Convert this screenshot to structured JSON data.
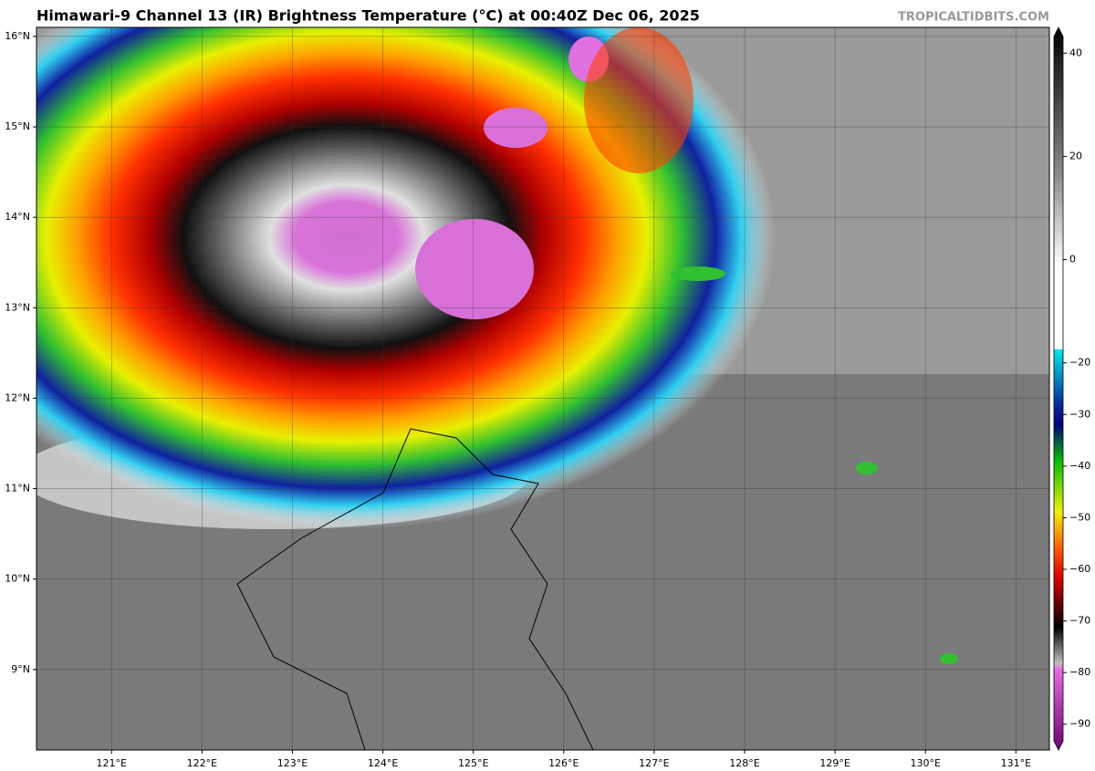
{
  "map": {
    "title": "Himawari-9 Channel 13 (IR) Brightness Temperature (°C) at 00:40Z Dec 06, 2025",
    "credit": "TROPICALTIDBITS.COM",
    "lonlim": [
      120.17,
      131.37
    ],
    "latlim": [
      8.11,
      16.1
    ],
    "lon_ticks": [
      {
        "value": 121,
        "label": "121°E"
      },
      {
        "value": 122,
        "label": "122°E"
      },
      {
        "value": 123,
        "label": "123°E"
      },
      {
        "value": 124,
        "label": "124°E"
      },
      {
        "value": 125,
        "label": "125°E"
      },
      {
        "value": 126,
        "label": "126°E"
      },
      {
        "value": 127,
        "label": "127°E"
      },
      {
        "value": 128,
        "label": "128°E"
      },
      {
        "value": 129,
        "label": "129°E"
      },
      {
        "value": 130,
        "label": "130°E"
      },
      {
        "value": 131,
        "label": "131°E"
      }
    ],
    "lat_ticks": [
      {
        "value": 16,
        "label": "16°N"
      },
      {
        "value": 15,
        "label": "15°N"
      },
      {
        "value": 14,
        "label": "14°N"
      },
      {
        "value": 13,
        "label": "13°N"
      },
      {
        "value": 12,
        "label": "12°N"
      },
      {
        "value": 11,
        "label": "11°N"
      },
      {
        "value": 10,
        "label": "10°N"
      },
      {
        "value": 9,
        "label": "9°N"
      }
    ],
    "colorbar": {
      "lim": [
        -95,
        45
      ],
      "ticks": [
        40,
        20,
        0,
        {
          "value": -20,
          "label": "−20"
        },
        {
          "value": -30,
          "label": "−30"
        },
        {
          "value": -40,
          "label": "−40"
        },
        {
          "value": -50,
          "label": "−50"
        },
        {
          "value": -60,
          "label": "−60"
        },
        {
          "value": -70,
          "label": "−70"
        },
        {
          "value": -80,
          "label": "−80"
        },
        {
          "value": -90,
          "label": "−90"
        }
      ]
    }
  }
}
